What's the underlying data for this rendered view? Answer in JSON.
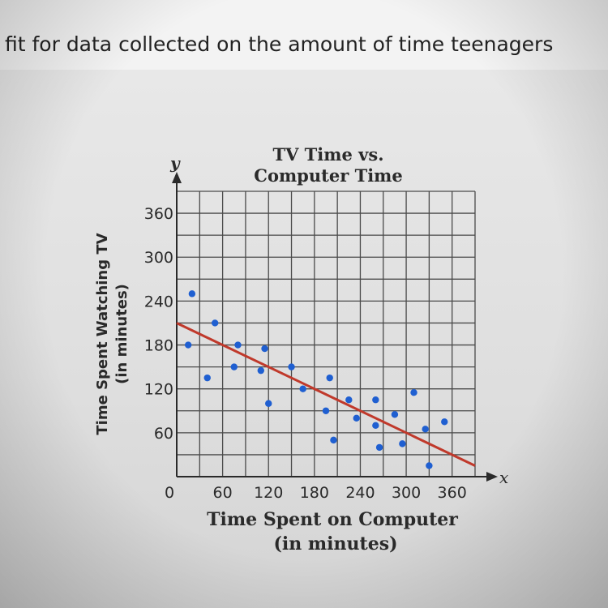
{
  "question": {
    "text": "fit for data collected on the amount of time teenagers"
  },
  "colors": {
    "grid": "#4a4a4a",
    "point": "#1f5fd1",
    "trend": "#c0392b",
    "text": "#2a2a2a"
  },
  "chart_data": {
    "type": "scatter",
    "title": "TV Time vs.\nComputer Time",
    "title_lines": [
      "TV Time vs.",
      "Computer Time"
    ],
    "xlabel_lines": [
      "Time Spent on Computer",
      "(in minutes)"
    ],
    "ylabel_lines": [
      "Time Spent Watching TV",
      "(in minutes)"
    ],
    "x_axis_letter": "x",
    "y_axis_letter": "y",
    "origin_label": "0",
    "xlim": [
      0,
      390
    ],
    "ylim": [
      0,
      390
    ],
    "grid": true,
    "grid_step": 30,
    "x_ticks": [
      60,
      120,
      180,
      240,
      300,
      360
    ],
    "y_ticks": [
      60,
      120,
      180,
      240,
      300,
      360
    ],
    "points": [
      {
        "x": 15,
        "y": 180
      },
      {
        "x": 20,
        "y": 250
      },
      {
        "x": 40,
        "y": 135
      },
      {
        "x": 50,
        "y": 210
      },
      {
        "x": 75,
        "y": 150
      },
      {
        "x": 80,
        "y": 180
      },
      {
        "x": 110,
        "y": 145
      },
      {
        "x": 115,
        "y": 175
      },
      {
        "x": 120,
        "y": 100
      },
      {
        "x": 150,
        "y": 150
      },
      {
        "x": 165,
        "y": 120
      },
      {
        "x": 195,
        "y": 90
      },
      {
        "x": 200,
        "y": 135
      },
      {
        "x": 205,
        "y": 50
      },
      {
        "x": 225,
        "y": 105
      },
      {
        "x": 235,
        "y": 80
      },
      {
        "x": 260,
        "y": 70
      },
      {
        "x": 260,
        "y": 105
      },
      {
        "x": 265,
        "y": 40
      },
      {
        "x": 285,
        "y": 85
      },
      {
        "x": 295,
        "y": 45
      },
      {
        "x": 310,
        "y": 115
      },
      {
        "x": 325,
        "y": 65
      },
      {
        "x": 330,
        "y": 15
      },
      {
        "x": 350,
        "y": 75
      }
    ],
    "trend_line": {
      "x1": 0,
      "y1": 210,
      "x2": 390,
      "y2": 15
    }
  }
}
